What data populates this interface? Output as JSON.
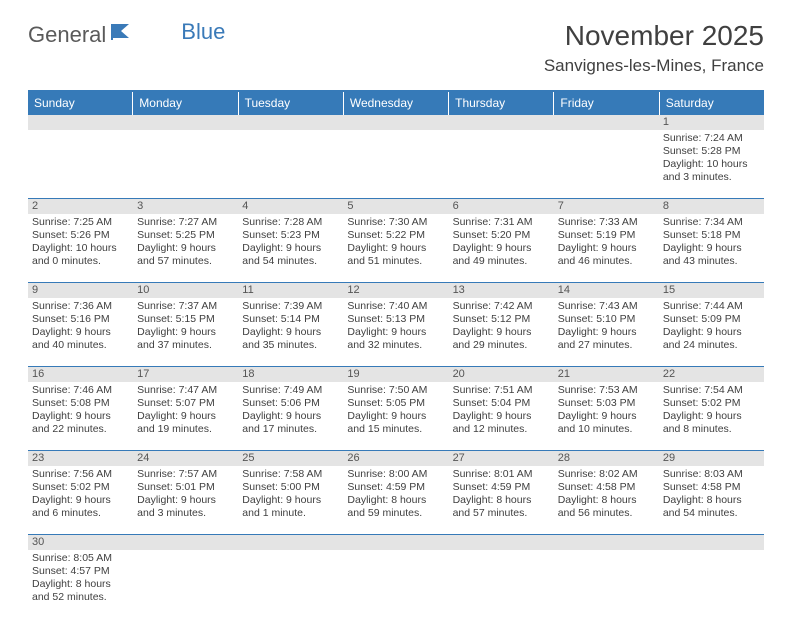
{
  "logo": {
    "general": "General",
    "blue": "Blue"
  },
  "title": "November 2025",
  "location": "Sanvignes-les-Mines, France",
  "colors": {
    "header_bg": "#367ab8",
    "header_text": "#ffffff",
    "daynum_bg": "#e4e4e4",
    "text": "#404040",
    "row_border": "#367ab8"
  },
  "weekdays": [
    "Sunday",
    "Monday",
    "Tuesday",
    "Wednesday",
    "Thursday",
    "Friday",
    "Saturday"
  ],
  "weeks": [
    [
      null,
      null,
      null,
      null,
      null,
      null,
      {
        "n": "1",
        "sr": "7:24 AM",
        "ss": "5:28 PM",
        "dl": "10 hours and 3 minutes."
      }
    ],
    [
      {
        "n": "2",
        "sr": "7:25 AM",
        "ss": "5:26 PM",
        "dl": "10 hours and 0 minutes."
      },
      {
        "n": "3",
        "sr": "7:27 AM",
        "ss": "5:25 PM",
        "dl": "9 hours and 57 minutes."
      },
      {
        "n": "4",
        "sr": "7:28 AM",
        "ss": "5:23 PM",
        "dl": "9 hours and 54 minutes."
      },
      {
        "n": "5",
        "sr": "7:30 AM",
        "ss": "5:22 PM",
        "dl": "9 hours and 51 minutes."
      },
      {
        "n": "6",
        "sr": "7:31 AM",
        "ss": "5:20 PM",
        "dl": "9 hours and 49 minutes."
      },
      {
        "n": "7",
        "sr": "7:33 AM",
        "ss": "5:19 PM",
        "dl": "9 hours and 46 minutes."
      },
      {
        "n": "8",
        "sr": "7:34 AM",
        "ss": "5:18 PM",
        "dl": "9 hours and 43 minutes."
      }
    ],
    [
      {
        "n": "9",
        "sr": "7:36 AM",
        "ss": "5:16 PM",
        "dl": "9 hours and 40 minutes."
      },
      {
        "n": "10",
        "sr": "7:37 AM",
        "ss": "5:15 PM",
        "dl": "9 hours and 37 minutes."
      },
      {
        "n": "11",
        "sr": "7:39 AM",
        "ss": "5:14 PM",
        "dl": "9 hours and 35 minutes."
      },
      {
        "n": "12",
        "sr": "7:40 AM",
        "ss": "5:13 PM",
        "dl": "9 hours and 32 minutes."
      },
      {
        "n": "13",
        "sr": "7:42 AM",
        "ss": "5:12 PM",
        "dl": "9 hours and 29 minutes."
      },
      {
        "n": "14",
        "sr": "7:43 AM",
        "ss": "5:10 PM",
        "dl": "9 hours and 27 minutes."
      },
      {
        "n": "15",
        "sr": "7:44 AM",
        "ss": "5:09 PM",
        "dl": "9 hours and 24 minutes."
      }
    ],
    [
      {
        "n": "16",
        "sr": "7:46 AM",
        "ss": "5:08 PM",
        "dl": "9 hours and 22 minutes."
      },
      {
        "n": "17",
        "sr": "7:47 AM",
        "ss": "5:07 PM",
        "dl": "9 hours and 19 minutes."
      },
      {
        "n": "18",
        "sr": "7:49 AM",
        "ss": "5:06 PM",
        "dl": "9 hours and 17 minutes."
      },
      {
        "n": "19",
        "sr": "7:50 AM",
        "ss": "5:05 PM",
        "dl": "9 hours and 15 minutes."
      },
      {
        "n": "20",
        "sr": "7:51 AM",
        "ss": "5:04 PM",
        "dl": "9 hours and 12 minutes."
      },
      {
        "n": "21",
        "sr": "7:53 AM",
        "ss": "5:03 PM",
        "dl": "9 hours and 10 minutes."
      },
      {
        "n": "22",
        "sr": "7:54 AM",
        "ss": "5:02 PM",
        "dl": "9 hours and 8 minutes."
      }
    ],
    [
      {
        "n": "23",
        "sr": "7:56 AM",
        "ss": "5:02 PM",
        "dl": "9 hours and 6 minutes."
      },
      {
        "n": "24",
        "sr": "7:57 AM",
        "ss": "5:01 PM",
        "dl": "9 hours and 3 minutes."
      },
      {
        "n": "25",
        "sr": "7:58 AM",
        "ss": "5:00 PM",
        "dl": "9 hours and 1 minute."
      },
      {
        "n": "26",
        "sr": "8:00 AM",
        "ss": "4:59 PM",
        "dl": "8 hours and 59 minutes."
      },
      {
        "n": "27",
        "sr": "8:01 AM",
        "ss": "4:59 PM",
        "dl": "8 hours and 57 minutes."
      },
      {
        "n": "28",
        "sr": "8:02 AM",
        "ss": "4:58 PM",
        "dl": "8 hours and 56 minutes."
      },
      {
        "n": "29",
        "sr": "8:03 AM",
        "ss": "4:58 PM",
        "dl": "8 hours and 54 minutes."
      }
    ],
    [
      {
        "n": "30",
        "sr": "8:05 AM",
        "ss": "4:57 PM",
        "dl": "8 hours and 52 minutes."
      },
      null,
      null,
      null,
      null,
      null,
      null
    ]
  ],
  "labels": {
    "sunrise": "Sunrise:",
    "sunset": "Sunset:",
    "daylight": "Daylight:"
  }
}
